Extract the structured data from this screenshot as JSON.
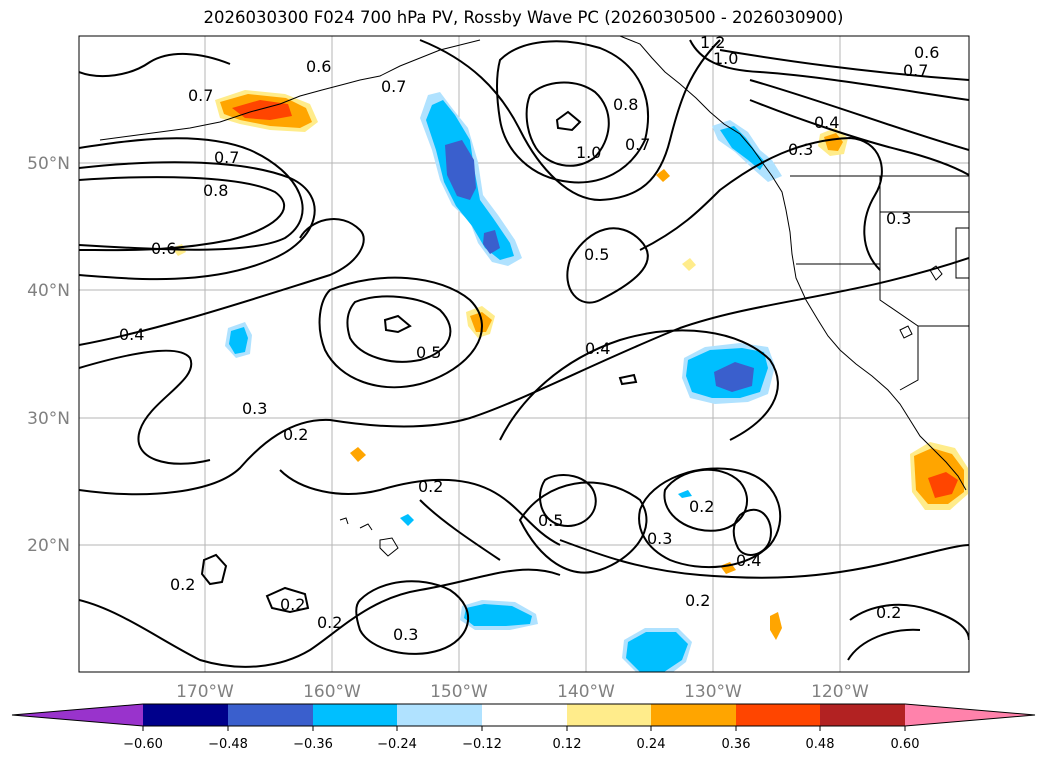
{
  "title": "2026030300 F024 700 hPa PV, Rossby Wave PC (2026030500 - 2026030900)",
  "lat_labels": [
    "50°N",
    "40°N",
    "30°N",
    "20°N"
  ],
  "lon_labels": [
    "170°W",
    "160°W",
    "150°W",
    "140°W",
    "130°W",
    "120°W"
  ],
  "contour_labels": [
    "0.6",
    "0.7",
    "0.7",
    "0.7",
    "0.8",
    "0.6",
    "0.4",
    "0.3",
    "0.2",
    "0.2",
    "0.2",
    "0.2",
    "0.3",
    "0.5",
    "0.4",
    "0.5",
    "0.5",
    "0.2",
    "0.3",
    "0.4",
    "0.2",
    "0.2",
    "1.0",
    "0.8",
    "0.7",
    "1.2",
    "1.0",
    "0.6",
    "0.7",
    "0.4",
    "0.3",
    "0.3",
    "0.2"
  ],
  "colorbar": {
    "colors": [
      "#9933cc",
      "#00008b",
      "#3a5fcd",
      "#00bfff",
      "#b0e2ff",
      "#ffffff",
      "#ffec8b",
      "#ffa500",
      "#ff4500",
      "#b22222",
      "#ff82ab"
    ],
    "tick_labels": [
      "−0.60",
      "−0.48",
      "−0.36",
      "−0.24",
      "−0.12",
      "0.12",
      "0.24",
      "0.36",
      "0.48",
      "0.60"
    ]
  }
}
